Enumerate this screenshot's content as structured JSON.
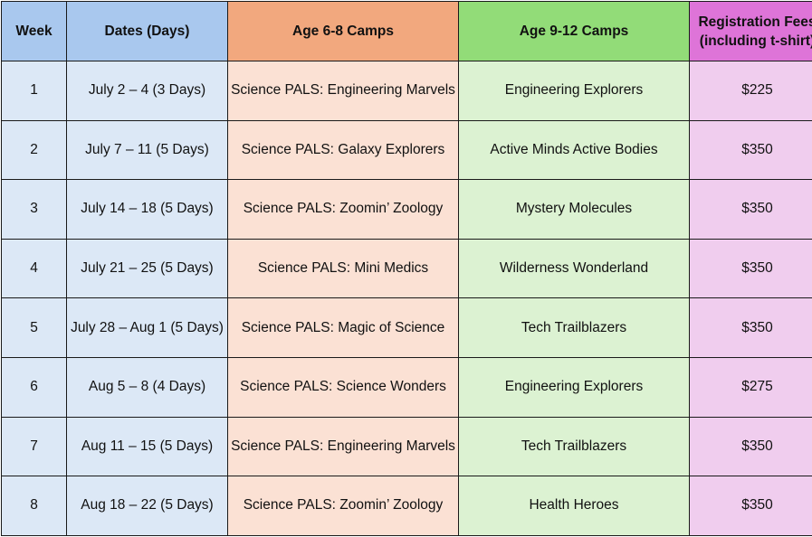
{
  "headers": {
    "week": "Week",
    "dates": "Dates (Days)",
    "young": "Age 6-8 Camps",
    "old": "Age 9-12 Camps",
    "fee_line1": "Registration Fees",
    "fee_line2": "(including t-shirt)"
  },
  "rows": [
    {
      "week": "1",
      "dates": "July 2 – 4 (3 Days)",
      "young": "Science PALS: Engineering Marvels",
      "old": "Engineering Explorers",
      "fee": "$225"
    },
    {
      "week": "2",
      "dates": "July 7 – 11 (5 Days)",
      "young": "Science PALS: Galaxy Explorers",
      "old": "Active Minds Active Bodies",
      "fee": "$350"
    },
    {
      "week": "3",
      "dates": "July 14 – 18 (5 Days)",
      "young": "Science PALS: Zoomin’ Zoology",
      "old": "Mystery Molecules",
      "fee": "$350"
    },
    {
      "week": "4",
      "dates": "July 21 – 25 (5 Days)",
      "young": "Science PALS: Mini Medics",
      "old": "Wilderness Wonderland",
      "fee": "$350"
    },
    {
      "week": "5",
      "dates": "July 28 – Aug 1 (5 Days)",
      "young": "Science PALS: Magic of Science",
      "old": "Tech Trailblazers",
      "fee": "$350"
    },
    {
      "week": "6",
      "dates": "Aug 5 – 8 (4 Days)",
      "young": "Science PALS: Science Wonders",
      "old": "Engineering Explorers",
      "fee": "$275"
    },
    {
      "week": "7",
      "dates": "Aug 11 – 15 (5 Days)",
      "young": "Science PALS: Engineering Marvels",
      "old": "Tech Trailblazers",
      "fee": "$350"
    },
    {
      "week": "8",
      "dates": "Aug 18 – 22 (5 Days)",
      "young": "Science PALS: Zoomin’ Zoology",
      "old": "Health Heroes",
      "fee": "$350"
    }
  ],
  "colors": {
    "header_blue": "#a9c8ee",
    "header_orange": "#f2a87e",
    "header_green": "#92dc78",
    "header_pink": "#de74d8",
    "cell_blue": "#dce8f6",
    "cell_orange": "#fbe1d4",
    "cell_green": "#dcf2d2",
    "cell_pink": "#f0cdee"
  }
}
